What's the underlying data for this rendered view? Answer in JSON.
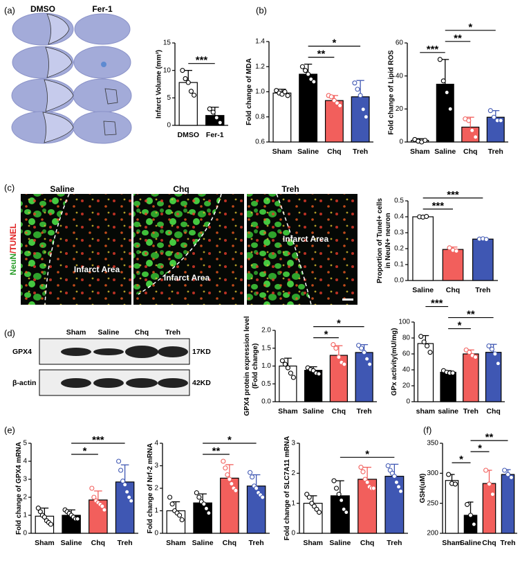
{
  "panel_labels": [
    "(a)",
    "(b)",
    "(c)",
    "(d)",
    "(e)",
    "(f)"
  ],
  "brain": {
    "columns": [
      "DMSO",
      "Fer-1"
    ]
  },
  "microscopy": {
    "columns": [
      "Saline",
      "Chq",
      "Treh"
    ],
    "stain": [
      "NeuN",
      "/TUNEL"
    ],
    "region_labels": [
      "Infarct Area",
      "Infarct Area",
      "Infarct Area"
    ]
  },
  "blot": {
    "lanes": [
      "Sham",
      "Saline",
      "Chq",
      "Treh"
    ],
    "proteins": [
      "GPX4",
      "β-actin"
    ],
    "sizes": [
      "17KD",
      "42KD"
    ]
  },
  "chart_data": [
    {
      "type": "bar",
      "ylabel": "Infarct Volume (mm³)",
      "categories": [
        "DMSO",
        "Fer-1"
      ],
      "colors": [
        "#ffffff",
        "#000000"
      ],
      "values": [
        7.8,
        1.8
      ],
      "errors": [
        2.2,
        1.5
      ],
      "points": [
        [
          10.0,
          8.5,
          7.8,
          6.2,
          5.5
        ],
        [
          3.0,
          2.4,
          1.4,
          0.5
        ]
      ],
      "ylim": [
        0,
        15
      ],
      "yticks": [
        0,
        5,
        10,
        15
      ],
      "comparisons": [
        {
          "categories": [
            "DMSO",
            "Fer-1"
          ],
          "label": "***"
        }
      ]
    },
    {
      "type": "bar",
      "ylabel": "Fold change of MDA",
      "categories": [
        "Sham",
        "Saline",
        "Chq",
        "Treh"
      ],
      "colors": [
        "#ffffff",
        "#000000",
        "#f25f5c",
        "#3f57b3"
      ],
      "values": [
        0.99,
        1.14,
        0.93,
        0.96
      ],
      "errors": [
        0.03,
        0.08,
        0.04,
        0.13
      ],
      "points": [
        [
          1.01,
          0.99,
          0.98,
          1.0,
          0.97
        ],
        [
          1.2,
          1.17,
          1.14,
          1.1,
          1.08
        ],
        [
          0.97,
          0.96,
          0.93,
          0.91,
          0.89
        ],
        [
          1.07,
          1.02,
          0.97,
          0.86,
          0.8
        ]
      ],
      "ylim": [
        0.6,
        1.4
      ],
      "yticks": [
        0.6,
        0.8,
        {
          "value": 1,
          "label": "1.0"
        },
        1.2,
        1.4
      ],
      "comparisons": [
        {
          "categories": [
            "Saline",
            "Chq"
          ],
          "label": "**"
        },
        {
          "categories": [
            "Saline",
            "Treh"
          ],
          "label": "*"
        }
      ]
    },
    {
      "type": "bar",
      "ylabel": "Fold change of Lipid ROS",
      "categories": [
        "Sham",
        "Saline",
        "Chq",
        "Treh"
      ],
      "colors": [
        "#ffffff",
        "#000000",
        "#f25f5c",
        "#3f57b3"
      ],
      "values": [
        1,
        35,
        9,
        15
      ],
      "errors": [
        1,
        15,
        6,
        4
      ],
      "points": [
        [
          1.5,
          0.5,
          0,
          1
        ],
        [
          50,
          37,
          30,
          20
        ],
        [
          14,
          13,
          7,
          3
        ],
        [
          19,
          15,
          13,
          13
        ]
      ],
      "ylim": [
        0,
        60
      ],
      "yticks": [
        0,
        20,
        40,
        60
      ],
      "comparisons": [
        {
          "categories": [
            "Sham",
            "Saline"
          ],
          "label": "***"
        },
        {
          "categories": [
            "Saline",
            "Chq"
          ],
          "label": "**"
        },
        {
          "categories": [
            "Saline",
            "Treh"
          ],
          "label": "*"
        }
      ]
    },
    {
      "type": "bar",
      "ylabel": [
        "Proportion of Tunel+ cells",
        "in NeuN+ neuron"
      ],
      "categories": [
        "Saline",
        "Chq",
        "Treh"
      ],
      "colors": [
        "#ffffff",
        "#f25f5c",
        "#3f57b3"
      ],
      "values": [
        0.4,
        0.195,
        0.26
      ],
      "errors": [
        0.005,
        0.015,
        0.005
      ],
      "points": [
        [
          0.4,
          0.398,
          0.402
        ],
        [
          0.205,
          0.19,
          0.185
        ],
        [
          0.26,
          0.262,
          0.258
        ]
      ],
      "ylim": [
        0,
        0.5
      ],
      "yticks": [
        {
          "value": 0,
          "label": "0.0"
        },
        0.1,
        0.2,
        0.3,
        0.4,
        0.5
      ],
      "comparisons": [
        {
          "categories": [
            "Saline",
            "Chq"
          ],
          "label": "***"
        },
        {
          "categories": [
            "Saline",
            "Treh"
          ],
          "label": "***"
        }
      ]
    },
    {
      "type": "bar",
      "ylabel": [
        "GPX4 protein expression level",
        "(Fold change)"
      ],
      "categories": [
        "Sham",
        "Saline",
        "Chq",
        "Treh"
      ],
      "colors": [
        "#ffffff",
        "#000000",
        "#f25f5c",
        "#3f57b3"
      ],
      "values": [
        1.0,
        0.88,
        1.3,
        1.38
      ],
      "errors": [
        0.22,
        0.1,
        0.27,
        0.22
      ],
      "points": [
        [
          1.15,
          1.05,
          0.95,
          0.8,
          0.68
        ],
        [
          0.95,
          0.9,
          0.87,
          0.8,
          0.78
        ],
        [
          1.6,
          1.5,
          1.25,
          1.1,
          1.05
        ],
        [
          1.58,
          1.5,
          1.38,
          1.2,
          1.05
        ]
      ],
      "ylim": [
        0,
        2
      ],
      "yticks": [
        {
          "value": 0,
          "label": "0.0"
        },
        0.5,
        {
          "value": 1,
          "label": "1.0"
        },
        1.5,
        {
          "value": 2,
          "label": "2.0"
        }
      ],
      "comparisons": [
        {
          "categories": [
            "Saline",
            "Chq"
          ],
          "label": "*"
        },
        {
          "categories": [
            "Saline",
            "Treh"
          ],
          "label": "*"
        }
      ]
    },
    {
      "type": "bar",
      "ylabel": "GPx activity(mU/mg)",
      "categories": [
        "sham",
        "saline",
        "Treh",
        "Chq"
      ],
      "colors": [
        "#ffffff",
        "#000000",
        "#f25f5c",
        "#3f57b3"
      ],
      "values": [
        73,
        37,
        60,
        62
      ],
      "errors": [
        10,
        2,
        5,
        10
      ],
      "points": [
        [
          82,
          75,
          70,
          62
        ],
        [
          39,
          37,
          36,
          36
        ],
        [
          65,
          62,
          58,
          56
        ],
        [
          70,
          66,
          60,
          48
        ]
      ],
      "ylim": [
        0,
        100
      ],
      "yticks": [
        0,
        20,
        40,
        60,
        80,
        100
      ],
      "comparisons": [
        {
          "categories": [
            "saline",
            "Treh"
          ],
          "label": "*"
        },
        {
          "categories": [
            "saline",
            "Chq"
          ],
          "label": "**"
        },
        {
          "categories": [
            "sham",
            "saline"
          ],
          "label": "***"
        }
      ]
    },
    {
      "type": "bar",
      "ylabel": "Fold change of GPX4 mRNA",
      "categories": [
        "Sham",
        "Saline",
        "Chq",
        "Treh"
      ],
      "colors": [
        "#ffffff",
        "#000000",
        "#f25f5c",
        "#3f57b3"
      ],
      "values": [
        0.95,
        1.0,
        1.85,
        2.85
      ],
      "errors": [
        0.45,
        0.3,
        0.5,
        0.95
      ],
      "points": [
        [
          1.4,
          1.2,
          1.0,
          0.9,
          0.7,
          0.6,
          0.5
        ],
        [
          1.3,
          1.2,
          1.1,
          1.0,
          0.9,
          0.8,
          0.8
        ],
        [
          2.5,
          2.0,
          1.8,
          1.7,
          1.6,
          1.5,
          1.3
        ],
        [
          4.0,
          3.5,
          2.9,
          2.7,
          2.3,
          2.0,
          1.8
        ]
      ],
      "ylim": [
        0,
        5
      ],
      "yticks": [
        0,
        1,
        2,
        3,
        4,
        5
      ],
      "comparisons": [
        {
          "categories": [
            "Saline",
            "Chq"
          ],
          "label": "*"
        },
        {
          "categories": [
            "Saline",
            "Treh"
          ],
          "label": "***"
        }
      ]
    },
    {
      "type": "bar",
      "ylabel": "Fold change of Nrf-2 mRNA",
      "categories": [
        "Sham",
        "Saline",
        "Chq",
        "Treh"
      ],
      "colors": [
        "#ffffff",
        "#000000",
        "#f25f5c",
        "#3f57b3"
      ],
      "values": [
        1.0,
        1.35,
        2.45,
        2.1
      ],
      "errors": [
        0.4,
        0.4,
        0.6,
        0.5
      ],
      "points": [
        [
          1.6,
          1.3,
          1.0,
          0.9,
          0.8,
          0.6
        ],
        [
          1.8,
          1.6,
          1.4,
          1.3,
          1.1,
          0.9
        ],
        [
          3.2,
          2.9,
          2.6,
          2.4,
          2.2,
          2.0,
          1.9
        ],
        [
          2.7,
          2.5,
          2.1,
          2.0,
          1.8,
          1.7,
          1.6
        ]
      ],
      "ylim": [
        0,
        4
      ],
      "yticks": [
        0,
        1,
        2,
        3,
        4
      ],
      "comparisons": [
        {
          "categories": [
            "Saline",
            "Chq"
          ],
          "label": "**"
        },
        {
          "categories": [
            "Saline",
            "Treh"
          ],
          "label": "*"
        }
      ]
    },
    {
      "type": "bar",
      "ylabel": "Fold change of SLC7A11 mRNA",
      "categories": [
        "Sham",
        "Saline",
        "Chq",
        "Treh"
      ],
      "colors": [
        "#ffffff",
        "#000000",
        "#f25f5c",
        "#3f57b3"
      ],
      "values": [
        1.0,
        1.25,
        1.8,
        1.9
      ],
      "errors": [
        0.25,
        0.5,
        0.4,
        0.4
      ],
      "points": [
        [
          1.3,
          1.2,
          1.0,
          0.9,
          0.8,
          0.7
        ],
        [
          1.75,
          1.5,
          1.3,
          1.1,
          0.8,
          0.7
        ],
        [
          2.2,
          2.05,
          1.8,
          1.7,
          1.55,
          1.5,
          1.5
        ],
        [
          2.25,
          2.1,
          2.0,
          1.9,
          1.7,
          1.55,
          1.4
        ]
      ],
      "ylim": [
        0,
        3
      ],
      "yticks": [
        0,
        1,
        2,
        3
      ],
      "comparisons": [
        {
          "categories": [
            "Saline",
            "Treh"
          ],
          "label": "*"
        }
      ]
    },
    {
      "type": "bar",
      "ylabel": "GSH(uM)",
      "categories": [
        "Sham",
        "Saline",
        "Chq",
        "Treh"
      ],
      "colors": [
        "#ffffff",
        "#000000",
        "#f25f5c",
        "#3f57b3"
      ],
      "values": [
        288,
        230,
        283,
        298
      ],
      "errors": [
        10,
        22,
        22,
        8
      ],
      "points": [
        [
          298,
          283,
          282
        ],
        [
          248,
          230,
          215
        ],
        [
          305,
          282,
          265
        ],
        [
          305,
          298,
          293
        ]
      ],
      "ylim": [
        200,
        350
      ],
      "yticks": [
        200,
        250,
        300,
        350
      ],
      "comparisons": [
        {
          "categories": [
            "Sham",
            "Saline"
          ],
          "label": "*"
        },
        {
          "categories": [
            "Saline",
            "Chq"
          ],
          "label": "*"
        },
        {
          "categories": [
            "Saline",
            "Treh"
          ],
          "label": "**"
        }
      ]
    }
  ]
}
